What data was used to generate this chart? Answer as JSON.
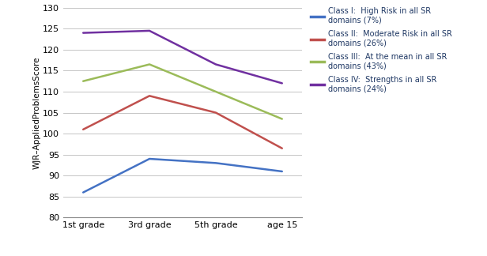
{
  "x_labels": [
    "1st grade",
    "3rd grade",
    "5th grade",
    "age 15"
  ],
  "series": [
    {
      "label": "Class I:  High Risk in all SR\ndomains (7%)",
      "values": [
        86,
        94,
        93,
        91
      ],
      "color": "#4472C4"
    },
    {
      "label": "Class II:  Moderate Risk in all SR\ndomains (26%)",
      "values": [
        101,
        109,
        105,
        96.5
      ],
      "color": "#C0504D"
    },
    {
      "label": "Class III:  At the mean in all SR\ndomains (43%)",
      "values": [
        112.5,
        116.5,
        110,
        103.5
      ],
      "color": "#9BBB59"
    },
    {
      "label": "Class IV:  Strengths in all SR\ndomains (24%)",
      "values": [
        124,
        124.5,
        116.5,
        112
      ],
      "color": "#7030A0"
    }
  ],
  "ylabel": "WJR–AppliedProblemsScore",
  "ylim": [
    80,
    130
  ],
  "yticks": [
    80,
    85,
    90,
    95,
    100,
    105,
    110,
    115,
    120,
    125,
    130
  ],
  "grid_color": "#BBBBBB",
  "line_width": 1.8,
  "legend_text_color": "#1F3864",
  "figsize": [
    6.16,
    3.24
  ],
  "dpi": 100
}
